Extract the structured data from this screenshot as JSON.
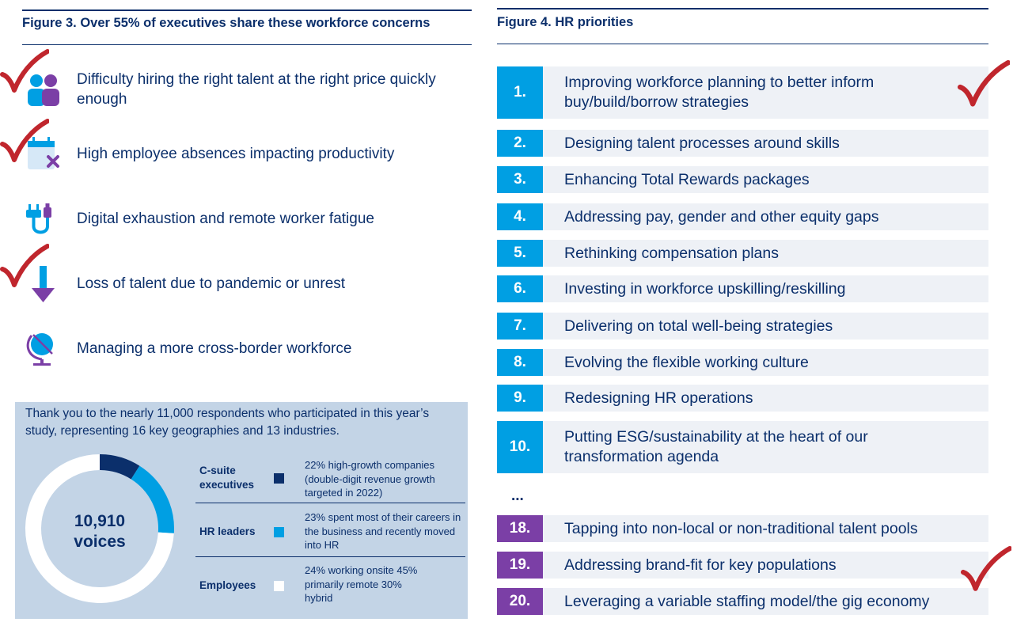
{
  "figure3": {
    "title": "Figure 3. Over 55% of executives share these workforce concerns",
    "concerns": [
      {
        "text": "Difficulty hiring the right talent at the right price quickly enough",
        "icon": "people-icon",
        "checked": true
      },
      {
        "text": "High employee absences impacting productivity",
        "icon": "calendar-x-icon",
        "checked": true
      },
      {
        "text": "Digital exhaustion and remote worker fatigue",
        "icon": "plug-cable-icon",
        "checked": false
      },
      {
        "text": "Loss of talent due to pandemic or unrest",
        "icon": "down-arrow-icon",
        "checked": true
      },
      {
        "text": "Managing a more cross-border workforce",
        "icon": "globe-icon",
        "checked": false
      }
    ]
  },
  "respondents": {
    "intro": "Thank you to the nearly 11,000 respondents who participated in this year’s study, representing 16 key geographies and 13 industries.",
    "total_line1": "10,910",
    "total_line2": "voices",
    "groups": [
      {
        "label": "C-suite executives",
        "color": "#0b2f6b",
        "desc": "22% high-growth companies (double-digit revenue growth targeted in 2022)"
      },
      {
        "label": "HR leaders",
        "color": "#009fe3",
        "desc": "23% spent most of their careers in the business and recently moved into HR"
      },
      {
        "label": "Employees",
        "color": "#ffffff",
        "desc": "24% working onsite 45% primarily remote 30% hybrid"
      }
    ],
    "donut_fractions": [
      0.09,
      0.17,
      0.74
    ]
  },
  "figure4": {
    "title": "Figure 4. HR priorities",
    "ellipsis": "...",
    "priorities": [
      {
        "num": "1.",
        "text": "Improving workforce planning to better inform buy/build/borrow strategies",
        "color": "#009fe3",
        "checked": true
      },
      {
        "num": "2.",
        "text": "Designing talent processes around skills",
        "color": "#009fe3",
        "checked": false
      },
      {
        "num": "3.",
        "text": "Enhancing Total Rewards packages",
        "color": "#009fe3",
        "checked": false
      },
      {
        "num": "4.",
        "text": "Addressing pay, gender and other equity gaps",
        "color": "#009fe3",
        "checked": false
      },
      {
        "num": "5.",
        "text": "Rethinking compensation plans",
        "color": "#009fe3",
        "checked": false
      },
      {
        "num": "6.",
        "text": "Investing in workforce upskilling/reskilling",
        "color": "#009fe3",
        "checked": false
      },
      {
        "num": "7.",
        "text": "Delivering on total well-being strategies",
        "color": "#009fe3",
        "checked": false
      },
      {
        "num": "8.",
        "text": "Evolving the flexible working culture",
        "color": "#009fe3",
        "checked": false
      },
      {
        "num": "9.",
        "text": "Redesigning HR operations",
        "color": "#009fe3",
        "checked": false
      },
      {
        "num": "10.",
        "text": "Putting ESG/sustainability at the heart of our transformation agenda",
        "color": "#009fe3",
        "checked": false
      },
      {
        "num": "18.",
        "text": "Tapping into non-local or non-traditional talent pools",
        "color": "#7b3fa6",
        "checked": false
      },
      {
        "num": "19.",
        "text": "Addressing brand-fit for key populations",
        "color": "#7b3fa6",
        "checked": false
      },
      {
        "num": "20.",
        "text": "Leveraging a variable staffing model/the gig economy",
        "color": "#7b3fa6",
        "checked": true
      }
    ]
  }
}
